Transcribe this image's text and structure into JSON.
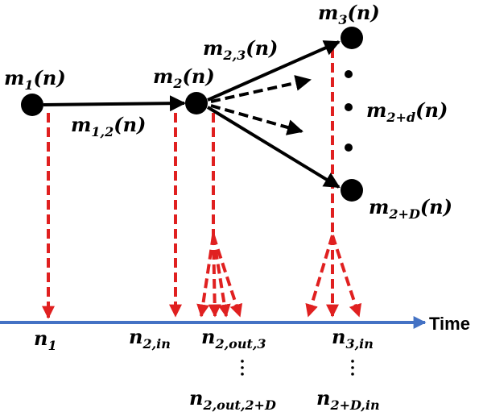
{
  "nodes": [
    {
      "symbol": "m",
      "sub": "1",
      "arg": "(n)"
    },
    {
      "symbol": "m",
      "sub": "2",
      "arg": "(n)"
    },
    {
      "symbol": "m",
      "sub": "3",
      "arg": "(n)"
    },
    {
      "symbol": "m",
      "sub": "2+d",
      "arg": "(n)"
    },
    {
      "symbol": "m",
      "sub": "2+D",
      "arg": "(n)"
    }
  ],
  "edges": [
    {
      "symbol": "m",
      "sub": "1,2",
      "arg": "(n)"
    },
    {
      "symbol": "m",
      "sub": "2,3",
      "arg": "(n)"
    }
  ],
  "times": [
    {
      "symbol": "n",
      "sub": "1"
    },
    {
      "symbol": "n",
      "sub": "2,in"
    },
    {
      "symbol": "n",
      "sub": "2,out,3"
    },
    {
      "symbol": "n",
      "sub": "2,out,2+D"
    },
    {
      "symbol": "n",
      "sub": "3,in"
    },
    {
      "symbol": "n",
      "sub": "2+D,in"
    }
  ],
  "axis_label": "Time"
}
